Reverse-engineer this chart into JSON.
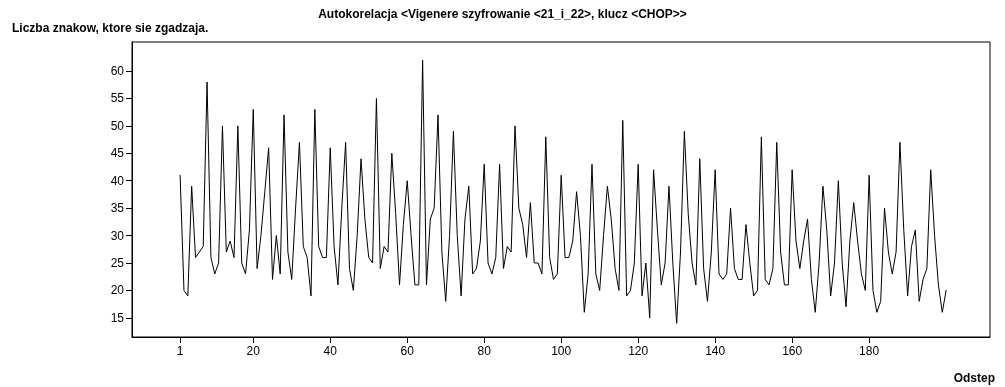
{
  "chart_data": {
    "type": "line",
    "title": "Autokorelacja <Vigenere szyfrowanie <21_i_22>, klucz <CHOP>>",
    "ylabel": "Liczba znakow, ktore sie zgadzaja.",
    "xlabel": "Odstep",
    "x": [
      1,
      2,
      3,
      4,
      5,
      6,
      7,
      8,
      9,
      10,
      11,
      12,
      13,
      14,
      15,
      16,
      17,
      18,
      19,
      20,
      21,
      22,
      23,
      24,
      25,
      26,
      27,
      28,
      29,
      30,
      31,
      32,
      33,
      34,
      35,
      36,
      37,
      38,
      39,
      40,
      41,
      42,
      43,
      44,
      45,
      46,
      47,
      48,
      49,
      50,
      51,
      52,
      53,
      54,
      55,
      56,
      57,
      58,
      59,
      60,
      61,
      62,
      63,
      64,
      65,
      66,
      67,
      68,
      69,
      70,
      71,
      72,
      73,
      74,
      75,
      76,
      77,
      78,
      79,
      80,
      81,
      82,
      83,
      84,
      85,
      86,
      87,
      88,
      89,
      90,
      91,
      92,
      93,
      94,
      95,
      96,
      97,
      98,
      99,
      100,
      101,
      102,
      103,
      104,
      105,
      106,
      107,
      108,
      109,
      110,
      111,
      112,
      113,
      114,
      115,
      116,
      117,
      118,
      119,
      120,
      121,
      122,
      123,
      124,
      125,
      126,
      127,
      128,
      129,
      130,
      131,
      132,
      133,
      134,
      135,
      136,
      137,
      138,
      139,
      140,
      141,
      142,
      143,
      144,
      145,
      146,
      147,
      148,
      149,
      150,
      151,
      152,
      153,
      154,
      155,
      156,
      157,
      158,
      159,
      160,
      161,
      162,
      163,
      164,
      165,
      166,
      167,
      168,
      169,
      170,
      171,
      172,
      173,
      174,
      175,
      176,
      177,
      178,
      179,
      180,
      181,
      182,
      183,
      184,
      185,
      186,
      187,
      188,
      189,
      190,
      191,
      192,
      193,
      194,
      195,
      196,
      197,
      198,
      199,
      200
    ],
    "series": [
      {
        "color": "#000000",
        "values": [
          41,
          20,
          19,
          39,
          26,
          27,
          28,
          58,
          26,
          23,
          25,
          50,
          27,
          29,
          26,
          50,
          25,
          23,
          31,
          53,
          24,
          30,
          38,
          46,
          22,
          30,
          23,
          52,
          27,
          22,
          35,
          47,
          28,
          26,
          19,
          53,
          28,
          26,
          26,
          46,
          28,
          21,
          35,
          47,
          24,
          20,
          30,
          44,
          33,
          26,
          25,
          55,
          24,
          28,
          27,
          45,
          34,
          21,
          32,
          40,
          30,
          21,
          21,
          62,
          21,
          33,
          35,
          52,
          27,
          18,
          30,
          49,
          30,
          19,
          33,
          39,
          23,
          24,
          29,
          43,
          25,
          23,
          26,
          43,
          24,
          28,
          27,
          50,
          35,
          32,
          26,
          36,
          25,
          25,
          23,
          48,
          26,
          22,
          23,
          41,
          26,
          26,
          29,
          38,
          30,
          16,
          23,
          43,
          23,
          20,
          30,
          39,
          33,
          24,
          20,
          51,
          19,
          20,
          25,
          43,
          19,
          25,
          15,
          42,
          31,
          21,
          25,
          39,
          25,
          14,
          27,
          49,
          34,
          25,
          21,
          44,
          24,
          18,
          27,
          42,
          23,
          22,
          23,
          35,
          24,
          22,
          22,
          32,
          25,
          19,
          20,
          48,
          22,
          21,
          24,
          47,
          27,
          21,
          21,
          42,
          29,
          24,
          29,
          33,
          22,
          16,
          25,
          39,
          31,
          19,
          25,
          40,
          25,
          17,
          29,
          36,
          29,
          23,
          20,
          41,
          20,
          16,
          18,
          35,
          27,
          23,
          27,
          47,
          31,
          19,
          28,
          31,
          18,
          22,
          24,
          42,
          30,
          21,
          16,
          20
        ]
      }
    ],
    "xlim": [
      -11.5,
      211.4
    ],
    "xticks": [
      1,
      20,
      40,
      60,
      80,
      100,
      120,
      140,
      160,
      180
    ],
    "ylim": [
      11.5,
      65.3
    ],
    "yticks": [
      15,
      20,
      25,
      30,
      35,
      40,
      45,
      50,
      55,
      60
    ],
    "marker": "none",
    "line_style": "solid",
    "grid": false
  }
}
